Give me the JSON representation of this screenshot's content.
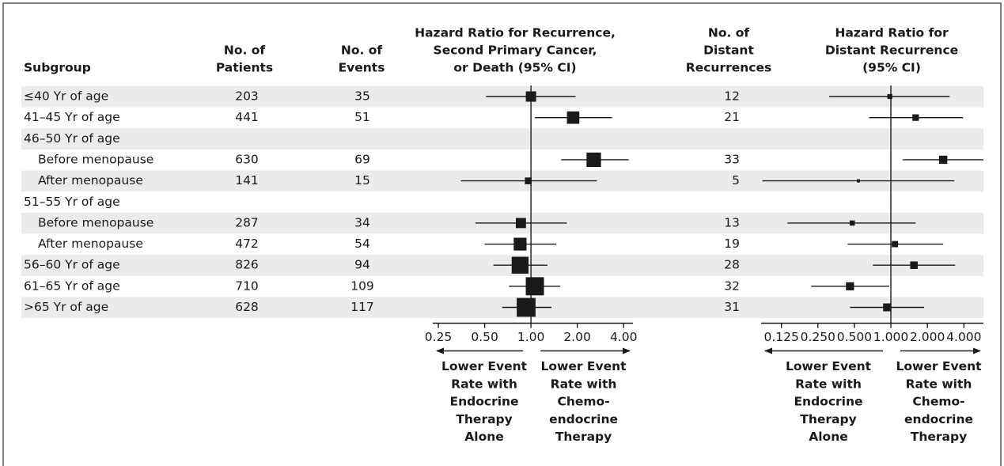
{
  "chart_data": {
    "type": "forest",
    "headers": {
      "subgroup": [
        "Subgroup"
      ],
      "patients": [
        "No. of",
        "Patients"
      ],
      "events": [
        "No. of",
        "Events"
      ],
      "hr": [
        "Hazard Ratio for Recurrence,",
        "Second Primary Cancer,",
        "or Death (95% CI)"
      ],
      "distant": [
        "No. of",
        "Distant",
        "Recurrences"
      ],
      "distant_hr": [
        "Hazard Ratio for",
        "Distant Recurrence",
        "(95% CI)"
      ]
    },
    "rows": [
      {
        "label": "≤40 Yr of age",
        "patients": 203,
        "events": 35,
        "distant": 12,
        "hr": [
          1.0,
          0.51,
          1.95
        ],
        "distant_hr": [
          0.98,
          0.31,
          3.05
        ]
      },
      {
        "label": "41–45 Yr of age",
        "patients": 441,
        "events": 51,
        "distant": 21,
        "hr": [
          1.88,
          1.06,
          3.37
        ],
        "distant_hr": [
          1.6,
          0.66,
          3.94
        ]
      },
      {
        "label": "46–50 Yr of age",
        "subgroups": [
          {
            "label": "Before menopause",
            "patients": 630,
            "events": 69,
            "distant": 33,
            "hr": [
              2.56,
              1.57,
              4.32
            ],
            "distant_hr": [
              2.7,
              1.25,
              5.8
            ]
          },
          {
            "label": "After menopause",
            "patients": 141,
            "events": 15,
            "distant": 5,
            "hr": [
              0.96,
              0.35,
              2.68
            ],
            "distant_hr": [
              0.54,
              0.087,
              3.34
            ]
          }
        ]
      },
      {
        "label": "51–55 Yr of age",
        "subgroups": [
          {
            "label": "Before menopause",
            "patients": 287,
            "events": 34,
            "distant": 13,
            "hr": [
              0.86,
              0.435,
              1.71
            ],
            "distant_hr": [
              0.48,
              0.14,
              1.6
            ]
          },
          {
            "label": "After menopause",
            "patients": 472,
            "events": 54,
            "distant": 19,
            "hr": [
              0.85,
              0.5,
              1.46
            ],
            "distant_hr": [
              1.08,
              0.44,
              2.7
            ]
          }
        ]
      },
      {
        "label": "56–60 Yr of age",
        "patients": 826,
        "events": 94,
        "distant": 28,
        "hr": [
          0.85,
          0.57,
          1.28
        ],
        "distant_hr": [
          1.55,
          0.71,
          3.39
        ]
      },
      {
        "label": "61–65 Yr of age",
        "patients": 710,
        "events": 109,
        "distant": 32,
        "hr": [
          1.06,
          0.72,
          1.55
        ],
        "distant_hr": [
          0.46,
          0.22,
          0.97
        ]
      },
      {
        "label": ">65 Yr of age",
        "patients": 628,
        "events": 117,
        "distant": 31,
        "hr": [
          0.93,
          0.65,
          1.36
        ],
        "distant_hr": [
          0.93,
          0.46,
          1.88
        ]
      }
    ],
    "plots": [
      {
        "xscale": "log",
        "xlim": [
          0.23,
          4.6
        ],
        "reference_line": 1,
        "xticks": [
          {
            "value": 0.25,
            "label": "0.25"
          },
          {
            "value": 0.5,
            "label": "0.50"
          },
          {
            "value": 1,
            "label": "1.00"
          },
          {
            "value": 2,
            "label": "2.00"
          },
          {
            "value": 4,
            "label": "4.00"
          }
        ],
        "left_label": [
          "Lower Event",
          "Rate with",
          "Endocrine",
          "Therapy",
          "Alone"
        ],
        "right_label": [
          "Lower Event",
          "Rate with",
          "Chemo-",
          "endocrine",
          "Therapy"
        ]
      },
      {
        "xscale": "log",
        "xlim": [
          0.085,
          5.8
        ],
        "reference_line": 1,
        "xticks": [
          0.125,
          {
            "value": 0.25,
            "label": "0.250"
          },
          {
            "value": 0.5,
            "label": "0.500"
          },
          {
            "value": 1,
            "label": "1.000"
          },
          {
            "value": 2,
            "label": "2.000"
          },
          {
            "value": 4,
            "label": "4.000"
          }
        ],
        "left_label": [
          "Lower Event",
          "Rate with",
          "Endocrine",
          "Therapy",
          "Alone"
        ],
        "right_label": [
          "Lower Event",
          "Rate with",
          "Chemo-",
          "endocrine",
          "Therapy"
        ]
      }
    ]
  }
}
